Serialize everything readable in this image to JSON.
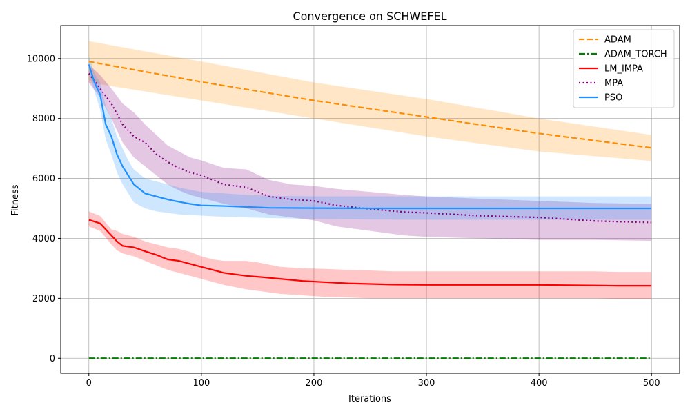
{
  "chart_data": {
    "type": "line",
    "title": "Convergence on SCHWEFEL",
    "xlabel": "Iterations",
    "ylabel": "Fitness",
    "xlim": [
      -25,
      525
    ],
    "ylim": [
      -500,
      11100
    ],
    "xticks": [
      0,
      100,
      200,
      300,
      400,
      500
    ],
    "yticks": [
      0,
      2000,
      4000,
      6000,
      8000,
      10000
    ],
    "grid": true,
    "legend_position": "top-right",
    "series": [
      {
        "name": "ADAM",
        "color": "#ff8c00",
        "style": "dashed",
        "x": [
          0,
          100,
          200,
          300,
          400,
          500
        ],
        "y": [
          9900,
          9220,
          8600,
          8050,
          7500,
          7020
        ],
        "lower": [
          9200,
          8600,
          8000,
          7400,
          6900,
          6580
        ],
        "upper": [
          10580,
          9900,
          9200,
          8650,
          8000,
          7450
        ]
      },
      {
        "name": "ADAM_TORCH",
        "color": "#008000",
        "style": "dashdot",
        "x": [
          0,
          100,
          200,
          300,
          400,
          500
        ],
        "y": [
          0,
          0,
          0,
          0,
          0,
          0
        ],
        "lower": [
          0,
          0,
          0,
          0,
          0,
          0
        ],
        "upper": [
          0,
          0,
          0,
          0,
          0,
          0
        ]
      },
      {
        "name": "LM_IMPA",
        "color": "#ff0000",
        "style": "solid",
        "x": [
          0,
          10,
          20,
          25,
          30,
          40,
          50,
          60,
          70,
          80,
          90,
          100,
          110,
          120,
          140,
          150,
          170,
          190,
          210,
          230,
          250,
          270,
          300,
          350,
          400,
          450,
          470,
          500
        ],
        "y": [
          4620,
          4500,
          4100,
          3900,
          3750,
          3700,
          3570,
          3450,
          3300,
          3250,
          3150,
          3050,
          2950,
          2850,
          2750,
          2720,
          2650,
          2580,
          2540,
          2500,
          2480,
          2460,
          2450,
          2450,
          2450,
          2430,
          2420,
          2420
        ],
        "lower": [
          4400,
          4250,
          3800,
          3600,
          3500,
          3400,
          3250,
          3100,
          2950,
          2850,
          2750,
          2650,
          2550,
          2450,
          2300,
          2250,
          2150,
          2100,
          2050,
          2030,
          2000,
          2000,
          2000,
          2000,
          2000,
          2000,
          1980,
          1980
        ],
        "upper": [
          4900,
          4750,
          4300,
          4250,
          4150,
          4050,
          3900,
          3800,
          3700,
          3650,
          3550,
          3400,
          3300,
          3250,
          3250,
          3200,
          3050,
          3000,
          2980,
          2950,
          2930,
          2900,
          2900,
          2900,
          2900,
          2900,
          2880,
          2880
        ]
      },
      {
        "name": "MPA",
        "color": "#800080",
        "style": "dotted",
        "x": [
          0,
          10,
          20,
          30,
          40,
          50,
          60,
          70,
          80,
          90,
          100,
          120,
          140,
          160,
          180,
          200,
          220,
          250,
          280,
          300,
          350,
          400,
          450,
          500
        ],
        "y": [
          9500,
          9000,
          8500,
          7800,
          7400,
          7200,
          6800,
          6550,
          6350,
          6200,
          6100,
          5800,
          5700,
          5400,
          5300,
          5250,
          5100,
          4980,
          4880,
          4850,
          4750,
          4700,
          4580,
          4530
        ],
        "lower": [
          9200,
          8700,
          8000,
          7200,
          6700,
          6400,
          6100,
          5800,
          5600,
          5450,
          5350,
          5150,
          5000,
          4800,
          4700,
          4600,
          4400,
          4250,
          4100,
          4050,
          4000,
          3950,
          3950,
          3920
        ],
        "upper": [
          9800,
          9450,
          9000,
          8500,
          8200,
          7800,
          7450,
          7100,
          6900,
          6700,
          6600,
          6350,
          6300,
          5950,
          5800,
          5750,
          5650,
          5550,
          5450,
          5400,
          5320,
          5250,
          5180,
          5150
        ]
      },
      {
        "name": "PSO",
        "color": "#1e90ff",
        "style": "solid",
        "x": [
          0,
          5,
          10,
          15,
          20,
          25,
          30,
          35,
          40,
          45,
          50,
          60,
          70,
          80,
          90,
          100,
          120,
          140,
          160,
          200,
          250,
          300,
          400,
          500
        ],
        "y": [
          9800,
          9200,
          8800,
          7800,
          7400,
          6800,
          6400,
          6100,
          5800,
          5650,
          5500,
          5400,
          5300,
          5220,
          5150,
          5100,
          5080,
          5050,
          5020,
          5010,
          5000,
          5000,
          5000,
          5000
        ],
        "lower": [
          9500,
          8900,
          8300,
          7300,
          6800,
          6200,
          5800,
          5500,
          5200,
          5100,
          5000,
          4900,
          4850,
          4800,
          4780,
          4760,
          4720,
          4700,
          4680,
          4650,
          4630,
          4620,
          4620,
          4620
        ],
        "upper": [
          10100,
          9500,
          9200,
          8400,
          8000,
          7400,
          7000,
          6600,
          6300,
          6150,
          6000,
          5900,
          5800,
          5700,
          5620,
          5550,
          5500,
          5450,
          5420,
          5400,
          5400,
          5400,
          5400,
          5400
        ]
      }
    ]
  }
}
